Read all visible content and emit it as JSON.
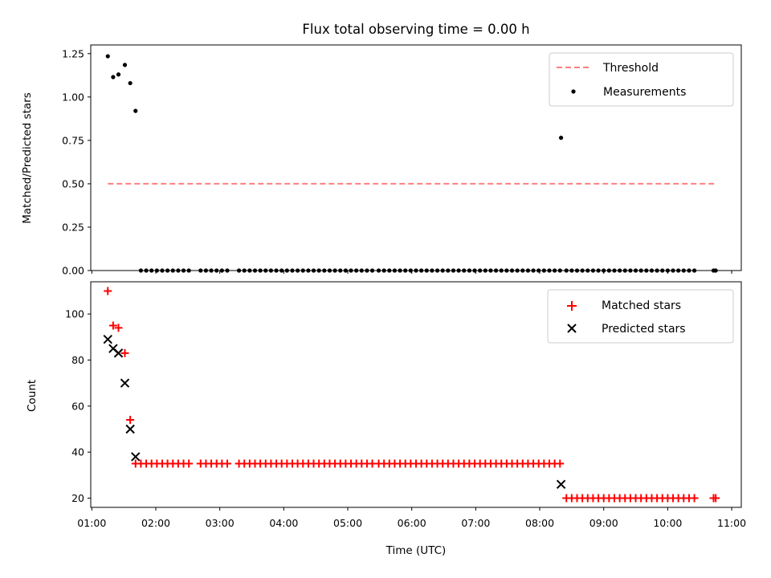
{
  "title": "Flux total observing time = 0.00 h",
  "colors": {
    "threshold": "#ff7f7f",
    "measurements": "#000000",
    "matched": "#ff0000",
    "predicted": "#000000"
  },
  "chart_data": [
    {
      "type": "scatter",
      "ylabel": "Matched/Predicted stars",
      "xlabel": "",
      "xlim": [
        "00:59",
        "11:09"
      ],
      "ylim": [
        0,
        1.3
      ],
      "x_ticks": [
        "01:00",
        "02:00",
        "03:00",
        "04:00",
        "05:00",
        "06:00",
        "07:00",
        "08:00",
        "09:00",
        "10:00",
        "11:00"
      ],
      "y_ticks": [
        "0.00",
        "0.25",
        "0.50",
        "0.75",
        "1.00",
        "1.25"
      ],
      "legend_position": "upper right",
      "threshold": {
        "name": "Threshold",
        "value": 0.5,
        "x_start": "01:15",
        "x_end": "10:45",
        "style": "dashed"
      },
      "series": [
        {
          "name": "Measurements",
          "marker": "dot",
          "points": [
            {
              "t": "01:15",
              "y": 1.235
            },
            {
              "t": "01:20",
              "y": 1.115
            },
            {
              "t": "01:25",
              "y": 1.13
            },
            {
              "t": "01:31",
              "y": 1.185
            },
            {
              "t": "01:36",
              "y": 1.08
            },
            {
              "t": "01:41",
              "y": 0.92
            },
            {
              "t": "01:46",
              "y": 0
            },
            {
              "t": "01:51",
              "y": 0
            },
            {
              "t": "01:56",
              "y": 0
            },
            {
              "t": "02:01",
              "y": 0
            },
            {
              "t": "02:06",
              "y": 0
            },
            {
              "t": "02:11",
              "y": 0
            },
            {
              "t": "02:16",
              "y": 0
            },
            {
              "t": "02:21",
              "y": 0
            },
            {
              "t": "02:26",
              "y": 0
            },
            {
              "t": "02:31",
              "y": 0
            },
            {
              "t": "02:42",
              "y": 0
            },
            {
              "t": "02:47",
              "y": 0
            },
            {
              "t": "02:52",
              "y": 0
            },
            {
              "t": "02:57",
              "y": 0
            },
            {
              "t": "03:02",
              "y": 0
            },
            {
              "t": "03:07",
              "y": 0
            },
            {
              "t": "03:18",
              "y": 0
            },
            {
              "t": "03:23",
              "y": 0
            },
            {
              "t": "03:28",
              "y": 0
            },
            {
              "t": "03:33",
              "y": 0
            },
            {
              "t": "03:38",
              "y": 0
            },
            {
              "t": "03:43",
              "y": 0
            },
            {
              "t": "03:48",
              "y": 0
            },
            {
              "t": "03:53",
              "y": 0
            },
            {
              "t": "03:58",
              "y": 0
            },
            {
              "t": "04:03",
              "y": 0
            },
            {
              "t": "04:08",
              "y": 0
            },
            {
              "t": "04:13",
              "y": 0
            },
            {
              "t": "04:18",
              "y": 0
            },
            {
              "t": "04:23",
              "y": 0
            },
            {
              "t": "04:28",
              "y": 0
            },
            {
              "t": "04:33",
              "y": 0
            },
            {
              "t": "04:38",
              "y": 0
            },
            {
              "t": "04:43",
              "y": 0
            },
            {
              "t": "04:48",
              "y": 0
            },
            {
              "t": "04:53",
              "y": 0
            },
            {
              "t": "04:58",
              "y": 0
            },
            {
              "t": "05:03",
              "y": 0
            },
            {
              "t": "05:08",
              "y": 0
            },
            {
              "t": "05:13",
              "y": 0
            },
            {
              "t": "05:18",
              "y": 0
            },
            {
              "t": "05:23",
              "y": 0
            },
            {
              "t": "05:29",
              "y": 0
            },
            {
              "t": "05:34",
              "y": 0
            },
            {
              "t": "05:39",
              "y": 0
            },
            {
              "t": "05:44",
              "y": 0
            },
            {
              "t": "05:49",
              "y": 0
            },
            {
              "t": "05:54",
              "y": 0
            },
            {
              "t": "05:59",
              "y": 0
            },
            {
              "t": "06:04",
              "y": 0
            },
            {
              "t": "06:09",
              "y": 0
            },
            {
              "t": "06:14",
              "y": 0
            },
            {
              "t": "06:19",
              "y": 0
            },
            {
              "t": "06:24",
              "y": 0
            },
            {
              "t": "06:29",
              "y": 0
            },
            {
              "t": "06:34",
              "y": 0
            },
            {
              "t": "06:39",
              "y": 0
            },
            {
              "t": "06:44",
              "y": 0
            },
            {
              "t": "06:49",
              "y": 0
            },
            {
              "t": "06:54",
              "y": 0
            },
            {
              "t": "06:59",
              "y": 0
            },
            {
              "t": "07:04",
              "y": 0
            },
            {
              "t": "07:09",
              "y": 0
            },
            {
              "t": "07:14",
              "y": 0
            },
            {
              "t": "07:19",
              "y": 0
            },
            {
              "t": "07:24",
              "y": 0
            },
            {
              "t": "07:29",
              "y": 0
            },
            {
              "t": "07:34",
              "y": 0
            },
            {
              "t": "07:39",
              "y": 0
            },
            {
              "t": "07:44",
              "y": 0
            },
            {
              "t": "07:49",
              "y": 0
            },
            {
              "t": "07:54",
              "y": 0
            },
            {
              "t": "07:59",
              "y": 0
            },
            {
              "t": "08:04",
              "y": 0
            },
            {
              "t": "08:09",
              "y": 0
            },
            {
              "t": "08:14",
              "y": 0
            },
            {
              "t": "08:19",
              "y": 0
            },
            {
              "t": "08:20",
              "y": 0.765
            },
            {
              "t": "08:25",
              "y": 0
            },
            {
              "t": "08:30",
              "y": 0
            },
            {
              "t": "08:35",
              "y": 0
            },
            {
              "t": "08:40",
              "y": 0
            },
            {
              "t": "08:45",
              "y": 0
            },
            {
              "t": "08:50",
              "y": 0
            },
            {
              "t": "08:55",
              "y": 0
            },
            {
              "t": "09:00",
              "y": 0
            },
            {
              "t": "09:05",
              "y": 0
            },
            {
              "t": "09:10",
              "y": 0
            },
            {
              "t": "09:15",
              "y": 0
            },
            {
              "t": "09:20",
              "y": 0
            },
            {
              "t": "09:25",
              "y": 0
            },
            {
              "t": "09:30",
              "y": 0
            },
            {
              "t": "09:35",
              "y": 0
            },
            {
              "t": "09:40",
              "y": 0
            },
            {
              "t": "09:45",
              "y": 0
            },
            {
              "t": "09:50",
              "y": 0
            },
            {
              "t": "09:55",
              "y": 0
            },
            {
              "t": "10:00",
              "y": 0
            },
            {
              "t": "10:05",
              "y": 0
            },
            {
              "t": "10:10",
              "y": 0
            },
            {
              "t": "10:15",
              "y": 0
            },
            {
              "t": "10:20",
              "y": 0
            },
            {
              "t": "10:25",
              "y": 0
            },
            {
              "t": "10:43",
              "y": 0
            },
            {
              "t": "10:45",
              "y": 0
            }
          ]
        }
      ]
    },
    {
      "type": "scatter",
      "ylabel": "Count",
      "xlabel": "Time (UTC)",
      "xlim": [
        "00:59",
        "11:09"
      ],
      "ylim": [
        16,
        114
      ],
      "x_ticks": [
        "01:00",
        "02:00",
        "03:00",
        "04:00",
        "05:00",
        "06:00",
        "07:00",
        "08:00",
        "09:00",
        "10:00",
        "11:00"
      ],
      "y_ticks": [
        "20",
        "40",
        "60",
        "80",
        "100"
      ],
      "legend_position": "upper right",
      "series": [
        {
          "name": "Matched stars",
          "marker": "plus",
          "points": [
            {
              "t": "01:15",
              "y": 110
            },
            {
              "t": "01:20",
              "y": 95
            },
            {
              "t": "01:25",
              "y": 94
            },
            {
              "t": "01:31",
              "y": 83
            },
            {
              "t": "01:36",
              "y": 54
            },
            {
              "t": "01:41",
              "y": 35
            },
            {
              "t": "01:46",
              "y": 35
            },
            {
              "t": "01:51",
              "y": 35
            },
            {
              "t": "01:56",
              "y": 35
            },
            {
              "t": "02:01",
              "y": 35
            },
            {
              "t": "02:06",
              "y": 35
            },
            {
              "t": "02:11",
              "y": 35
            },
            {
              "t": "02:16",
              "y": 35
            },
            {
              "t": "02:21",
              "y": 35
            },
            {
              "t": "02:26",
              "y": 35
            },
            {
              "t": "02:31",
              "y": 35
            },
            {
              "t": "02:42",
              "y": 35
            },
            {
              "t": "02:47",
              "y": 35
            },
            {
              "t": "02:52",
              "y": 35
            },
            {
              "t": "02:57",
              "y": 35
            },
            {
              "t": "03:02",
              "y": 35
            },
            {
              "t": "03:07",
              "y": 35
            },
            {
              "t": "03:18",
              "y": 35
            },
            {
              "t": "03:23",
              "y": 35
            },
            {
              "t": "03:28",
              "y": 35
            },
            {
              "t": "03:33",
              "y": 35
            },
            {
              "t": "03:38",
              "y": 35
            },
            {
              "t": "03:43",
              "y": 35
            },
            {
              "t": "03:48",
              "y": 35
            },
            {
              "t": "03:53",
              "y": 35
            },
            {
              "t": "03:58",
              "y": 35
            },
            {
              "t": "04:03",
              "y": 35
            },
            {
              "t": "04:08",
              "y": 35
            },
            {
              "t": "04:13",
              "y": 35
            },
            {
              "t": "04:18",
              "y": 35
            },
            {
              "t": "04:23",
              "y": 35
            },
            {
              "t": "04:28",
              "y": 35
            },
            {
              "t": "04:33",
              "y": 35
            },
            {
              "t": "04:38",
              "y": 35
            },
            {
              "t": "04:43",
              "y": 35
            },
            {
              "t": "04:48",
              "y": 35
            },
            {
              "t": "04:53",
              "y": 35
            },
            {
              "t": "04:58",
              "y": 35
            },
            {
              "t": "05:03",
              "y": 35
            },
            {
              "t": "05:08",
              "y": 35
            },
            {
              "t": "05:13",
              "y": 35
            },
            {
              "t": "05:18",
              "y": 35
            },
            {
              "t": "05:23",
              "y": 35
            },
            {
              "t": "05:29",
              "y": 35
            },
            {
              "t": "05:34",
              "y": 35
            },
            {
              "t": "05:39",
              "y": 35
            },
            {
              "t": "05:44",
              "y": 35
            },
            {
              "t": "05:49",
              "y": 35
            },
            {
              "t": "05:54",
              "y": 35
            },
            {
              "t": "05:59",
              "y": 35
            },
            {
              "t": "06:04",
              "y": 35
            },
            {
              "t": "06:09",
              "y": 35
            },
            {
              "t": "06:14",
              "y": 35
            },
            {
              "t": "06:19",
              "y": 35
            },
            {
              "t": "06:24",
              "y": 35
            },
            {
              "t": "06:29",
              "y": 35
            },
            {
              "t": "06:34",
              "y": 35
            },
            {
              "t": "06:39",
              "y": 35
            },
            {
              "t": "06:44",
              "y": 35
            },
            {
              "t": "06:49",
              "y": 35
            },
            {
              "t": "06:54",
              "y": 35
            },
            {
              "t": "06:59",
              "y": 35
            },
            {
              "t": "07:04",
              "y": 35
            },
            {
              "t": "07:09",
              "y": 35
            },
            {
              "t": "07:14",
              "y": 35
            },
            {
              "t": "07:19",
              "y": 35
            },
            {
              "t": "07:24",
              "y": 35
            },
            {
              "t": "07:29",
              "y": 35
            },
            {
              "t": "07:34",
              "y": 35
            },
            {
              "t": "07:39",
              "y": 35
            },
            {
              "t": "07:44",
              "y": 35
            },
            {
              "t": "07:49",
              "y": 35
            },
            {
              "t": "07:54",
              "y": 35
            },
            {
              "t": "07:59",
              "y": 35
            },
            {
              "t": "08:04",
              "y": 35
            },
            {
              "t": "08:09",
              "y": 35
            },
            {
              "t": "08:14",
              "y": 35
            },
            {
              "t": "08:19",
              "y": 35
            },
            {
              "t": "08:25",
              "y": 20
            },
            {
              "t": "08:30",
              "y": 20
            },
            {
              "t": "08:35",
              "y": 20
            },
            {
              "t": "08:40",
              "y": 20
            },
            {
              "t": "08:45",
              "y": 20
            },
            {
              "t": "08:50",
              "y": 20
            },
            {
              "t": "08:55",
              "y": 20
            },
            {
              "t": "09:00",
              "y": 20
            },
            {
              "t": "09:05",
              "y": 20
            },
            {
              "t": "09:10",
              "y": 20
            },
            {
              "t": "09:15",
              "y": 20
            },
            {
              "t": "09:20",
              "y": 20
            },
            {
              "t": "09:25",
              "y": 20
            },
            {
              "t": "09:30",
              "y": 20
            },
            {
              "t": "09:35",
              "y": 20
            },
            {
              "t": "09:40",
              "y": 20
            },
            {
              "t": "09:45",
              "y": 20
            },
            {
              "t": "09:50",
              "y": 20
            },
            {
              "t": "09:55",
              "y": 20
            },
            {
              "t": "10:00",
              "y": 20
            },
            {
              "t": "10:05",
              "y": 20
            },
            {
              "t": "10:10",
              "y": 20
            },
            {
              "t": "10:15",
              "y": 20
            },
            {
              "t": "10:20",
              "y": 20
            },
            {
              "t": "10:25",
              "y": 20
            },
            {
              "t": "10:43",
              "y": 20
            },
            {
              "t": "10:45",
              "y": 20
            }
          ]
        },
        {
          "name": "Predicted stars",
          "marker": "x",
          "points": [
            {
              "t": "01:15",
              "y": 89
            },
            {
              "t": "01:20",
              "y": 85
            },
            {
              "t": "01:25",
              "y": 83
            },
            {
              "t": "01:31",
              "y": 70
            },
            {
              "t": "01:36",
              "y": 50
            },
            {
              "t": "01:41",
              "y": 38
            },
            {
              "t": "08:20",
              "y": 26
            }
          ]
        }
      ]
    }
  ]
}
